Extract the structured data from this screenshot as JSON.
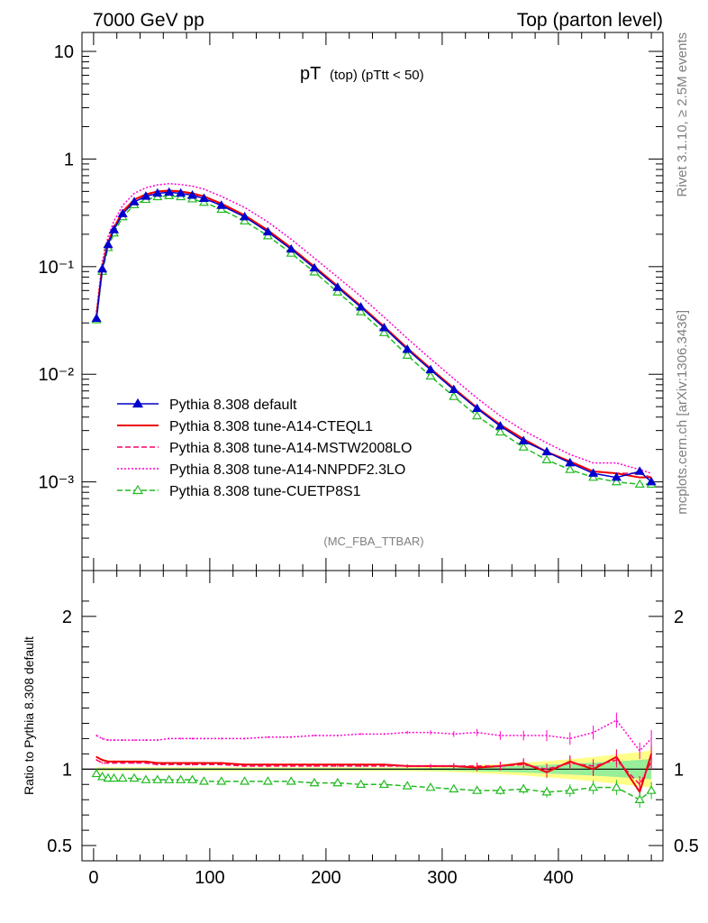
{
  "header": {
    "left": "7000 GeV pp",
    "right": "Top (parton level)"
  },
  "side": {
    "rivet": "Rivet 3.1.10, ≥ 2.5M events",
    "mcplots": "mcplots.cern.ch [arXiv:1306.3436]"
  },
  "chart_data": {
    "type": "line",
    "title": "pT (top) (pTtt < 50)",
    "title_main": "pT",
    "title_sub": "(top) (pTtt < 50)",
    "analysis_label": "(MC_FBA_TTBAR)",
    "xlabel": "",
    "ylabel_main": "",
    "ylabel_ratio": "Ratio to Pythia 8.308 default",
    "xlim": [
      -10,
      490
    ],
    "ylim_main": [
      0.00015,
      15
    ],
    "ylim_ratio": [
      0.4,
      2.3
    ],
    "yscale_main": "log",
    "xticks": [
      "0",
      "100",
      "200",
      "300",
      "400"
    ],
    "yticks_main": [
      "10",
      "1",
      "10⁻¹",
      "10⁻²",
      "10⁻³"
    ],
    "yticks_ratio": [
      "2",
      "1",
      "0.5"
    ],
    "legend_position": "lower-left",
    "legend": [
      {
        "label": "Pythia 8.308 default",
        "color": "#0000cc",
        "style": "solid",
        "marker": "filled-triangle"
      },
      {
        "label": "Pythia 8.308 tune-A14-CTEQL1",
        "color": "#ee0000",
        "style": "solid",
        "marker": "none"
      },
      {
        "label": "Pythia 8.308 tune-A14-MSTW2008LO",
        "color": "#ff0066",
        "style": "dashed",
        "marker": "none"
      },
      {
        "label": "Pythia 8.308 tune-A14-NNPDF2.3LO",
        "color": "#ff00cc",
        "style": "dotted",
        "marker": "none"
      },
      {
        "label": "Pythia 8.308 tune-CUETP8S1",
        "color": "#22bb22",
        "style": "dashed",
        "marker": "open-triangle"
      }
    ],
    "x": [
      2.5,
      7.5,
      12.5,
      17.5,
      25,
      35,
      45,
      55,
      65,
      75,
      85,
      95,
      110,
      130,
      150,
      170,
      190,
      210,
      230,
      250,
      270,
      290,
      310,
      330,
      350,
      370,
      390,
      410,
      430,
      450,
      470,
      480
    ],
    "series": [
      {
        "name": "Pythia 8.308 default",
        "values": [
          0.033,
          0.095,
          0.16,
          0.22,
          0.31,
          0.4,
          0.45,
          0.48,
          0.49,
          0.48,
          0.46,
          0.43,
          0.37,
          0.29,
          0.21,
          0.145,
          0.097,
          0.064,
          0.042,
          0.027,
          0.017,
          0.011,
          0.0072,
          0.0048,
          0.0033,
          0.0024,
          0.0019,
          0.0015,
          0.0012,
          0.0011,
          0.00125,
          0.001
        ]
      },
      {
        "name": "Pythia 8.308 tune-A14-CTEQL1",
        "values": [
          0.035,
          0.099,
          0.168,
          0.23,
          0.325,
          0.42,
          0.47,
          0.5,
          0.51,
          0.5,
          0.48,
          0.45,
          0.385,
          0.3,
          0.218,
          0.15,
          0.1,
          0.066,
          0.0432,
          0.0278,
          0.0175,
          0.0113,
          0.0074,
          0.0049,
          0.0034,
          0.0025,
          0.0019,
          0.00155,
          0.00125,
          0.0012,
          0.0011,
          0.0011
        ]
      },
      {
        "name": "Pythia 8.308 tune-A14-MSTW2008LO",
        "values": [
          0.035,
          0.098,
          0.166,
          0.228,
          0.322,
          0.415,
          0.465,
          0.495,
          0.505,
          0.495,
          0.475,
          0.445,
          0.38,
          0.297,
          0.216,
          0.148,
          0.099,
          0.0655,
          0.043,
          0.0276,
          0.0174,
          0.0112,
          0.0074,
          0.0049,
          0.0034,
          0.0025,
          0.0019,
          0.00155,
          0.00125,
          0.0012,
          0.0012,
          0.0011
        ]
      },
      {
        "name": "Pythia 8.308 tune-A14-NNPDF2.3LO",
        "values": [
          0.038,
          0.112,
          0.19,
          0.265,
          0.37,
          0.48,
          0.54,
          0.575,
          0.59,
          0.58,
          0.56,
          0.525,
          0.45,
          0.355,
          0.26,
          0.18,
          0.12,
          0.08,
          0.053,
          0.034,
          0.0215,
          0.0139,
          0.0091,
          0.006,
          0.0041,
          0.003,
          0.0023,
          0.0018,
          0.0015,
          0.0015,
          0.0013,
          0.0012
        ]
      },
      {
        "name": "Pythia 8.308 tune-CUETP8S1",
        "values": [
          0.032,
          0.09,
          0.15,
          0.205,
          0.29,
          0.375,
          0.42,
          0.445,
          0.455,
          0.445,
          0.425,
          0.395,
          0.34,
          0.265,
          0.193,
          0.133,
          0.089,
          0.058,
          0.038,
          0.0243,
          0.015,
          0.0096,
          0.0062,
          0.0041,
          0.0029,
          0.0021,
          0.0016,
          0.0013,
          0.0011,
          0.001,
          0.00095,
          0.00095
        ]
      }
    ],
    "ratio_series": [
      {
        "name": "Pythia 8.308 tune-A14-CTEQL1",
        "values": [
          1.08,
          1.06,
          1.05,
          1.05,
          1.05,
          1.05,
          1.05,
          1.04,
          1.04,
          1.04,
          1.04,
          1.04,
          1.04,
          1.03,
          1.03,
          1.03,
          1.03,
          1.03,
          1.03,
          1.03,
          1.02,
          1.02,
          1.02,
          1.01,
          1.02,
          1.04,
          0.98,
          1.05,
          1.0,
          1.08,
          0.85,
          1.1
        ]
      },
      {
        "name": "Pythia 8.308 tune-A14-MSTW2008LO",
        "values": [
          1.06,
          1.04,
          1.04,
          1.04,
          1.04,
          1.04,
          1.04,
          1.03,
          1.03,
          1.03,
          1.03,
          1.03,
          1.03,
          1.02,
          1.02,
          1.02,
          1.02,
          1.02,
          1.02,
          1.02,
          1.02,
          1.02,
          1.02,
          1.02,
          1.02,
          1.03,
          1.0,
          1.04,
          1.02,
          1.06,
          0.9,
          1.05
        ]
      },
      {
        "name": "Pythia 8.308 tune-A14-NNPDF2.3LO",
        "values": [
          1.22,
          1.2,
          1.19,
          1.19,
          1.19,
          1.19,
          1.19,
          1.19,
          1.2,
          1.2,
          1.2,
          1.2,
          1.2,
          1.2,
          1.21,
          1.21,
          1.22,
          1.22,
          1.23,
          1.23,
          1.24,
          1.24,
          1.23,
          1.24,
          1.22,
          1.22,
          1.22,
          1.2,
          1.24,
          1.32,
          1.12,
          1.2
        ]
      },
      {
        "name": "Pythia 8.308 tune-CUETP8S1",
        "values": [
          0.97,
          0.95,
          0.94,
          0.94,
          0.94,
          0.94,
          0.93,
          0.93,
          0.93,
          0.93,
          0.93,
          0.92,
          0.92,
          0.92,
          0.92,
          0.92,
          0.91,
          0.91,
          0.9,
          0.9,
          0.89,
          0.88,
          0.87,
          0.86,
          0.86,
          0.87,
          0.85,
          0.86,
          0.88,
          0.88,
          0.8,
          0.86
        ]
      }
    ],
    "ref_band": {
      "inner_color": "#99ee99",
      "outer_color": "#ffff88"
    }
  }
}
